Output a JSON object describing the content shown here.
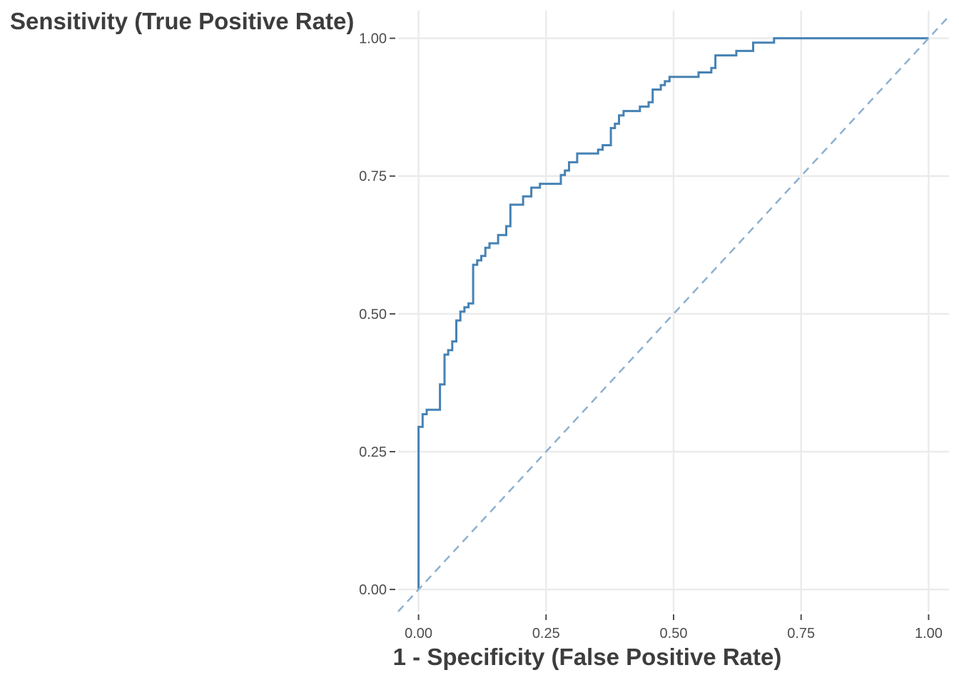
{
  "chart_data": {
    "type": "line",
    "xlabel": "1 - Specificity (False Positive Rate)",
    "ylabel": "Sensitivity (True Positive Rate)",
    "xlim": [
      -0.04,
      1.04
    ],
    "ylim": [
      -0.04,
      1.05
    ],
    "x_ticks": [
      0,
      0.25,
      0.5,
      0.75,
      1
    ],
    "x_tick_labels": [
      "0.00",
      "0.25",
      "0.50",
      "0.75",
      "1.00"
    ],
    "y_ticks": [
      0,
      0.25,
      0.5,
      0.75,
      1
    ],
    "y_tick_labels": [
      "0.00",
      "0.25",
      "0.50",
      "0.75",
      "1.00"
    ],
    "grid": true,
    "colors": {
      "roc": "#4682b4",
      "reference": "#8cb0d0",
      "grid": "#ebebeb"
    },
    "series": [
      {
        "style": "step",
        "points": [
          [
            0,
            0
          ],
          [
            0,
            0.295
          ],
          [
            0.008,
            0.295
          ],
          [
            0.008,
            0.318
          ],
          [
            0.016,
            0.318
          ],
          [
            0.016,
            0.326
          ],
          [
            0.042,
            0.326
          ],
          [
            0.042,
            0.372
          ],
          [
            0.051,
            0.372
          ],
          [
            0.051,
            0.426
          ],
          [
            0.058,
            0.426
          ],
          [
            0.058,
            0.434
          ],
          [
            0.066,
            0.434
          ],
          [
            0.066,
            0.45
          ],
          [
            0.074,
            0.45
          ],
          [
            0.074,
            0.488
          ],
          [
            0.082,
            0.488
          ],
          [
            0.082,
            0.504
          ],
          [
            0.09,
            0.504
          ],
          [
            0.09,
            0.512
          ],
          [
            0.098,
            0.512
          ],
          [
            0.098,
            0.519
          ],
          [
            0.107,
            0.519
          ],
          [
            0.107,
            0.589
          ],
          [
            0.115,
            0.589
          ],
          [
            0.115,
            0.597
          ],
          [
            0.123,
            0.597
          ],
          [
            0.123,
            0.605
          ],
          [
            0.131,
            0.605
          ],
          [
            0.131,
            0.62
          ],
          [
            0.139,
            0.62
          ],
          [
            0.139,
            0.628
          ],
          [
            0.156,
            0.628
          ],
          [
            0.156,
            0.643
          ],
          [
            0.172,
            0.643
          ],
          [
            0.172,
            0.659
          ],
          [
            0.18,
            0.659
          ],
          [
            0.18,
            0.698
          ],
          [
            0.205,
            0.698
          ],
          [
            0.205,
            0.713
          ],
          [
            0.221,
            0.713
          ],
          [
            0.221,
            0.729
          ],
          [
            0.238,
            0.729
          ],
          [
            0.238,
            0.736
          ],
          [
            0.279,
            0.736
          ],
          [
            0.279,
            0.752
          ],
          [
            0.287,
            0.752
          ],
          [
            0.287,
            0.76
          ],
          [
            0.295,
            0.76
          ],
          [
            0.295,
            0.775
          ],
          [
            0.311,
            0.775
          ],
          [
            0.311,
            0.791
          ],
          [
            0.352,
            0.791
          ],
          [
            0.352,
            0.798
          ],
          [
            0.361,
            0.798
          ],
          [
            0.361,
            0.806
          ],
          [
            0.377,
            0.806
          ],
          [
            0.377,
            0.837
          ],
          [
            0.385,
            0.837
          ],
          [
            0.385,
            0.845
          ],
          [
            0.393,
            0.845
          ],
          [
            0.393,
            0.86
          ],
          [
            0.402,
            0.86
          ],
          [
            0.402,
            0.868
          ],
          [
            0.434,
            0.868
          ],
          [
            0.434,
            0.876
          ],
          [
            0.451,
            0.876
          ],
          [
            0.451,
            0.884
          ],
          [
            0.459,
            0.884
          ],
          [
            0.459,
            0.907
          ],
          [
            0.475,
            0.907
          ],
          [
            0.475,
            0.915
          ],
          [
            0.483,
            0.915
          ],
          [
            0.483,
            0.922
          ],
          [
            0.492,
            0.922
          ],
          [
            0.492,
            0.93
          ],
          [
            0.549,
            0.93
          ],
          [
            0.549,
            0.938
          ],
          [
            0.574,
            0.938
          ],
          [
            0.574,
            0.946
          ],
          [
            0.582,
            0.946
          ],
          [
            0.582,
            0.969
          ],
          [
            0.623,
            0.969
          ],
          [
            0.623,
            0.977
          ],
          [
            0.656,
            0.977
          ],
          [
            0.656,
            0.992
          ],
          [
            0.697,
            0.992
          ],
          [
            0.697,
            1.0
          ],
          [
            1.0,
            1.0
          ]
        ]
      },
      {
        "style": "dashed",
        "points": [
          [
            -0.04,
            -0.04
          ],
          [
            1.04,
            1.04
          ]
        ]
      }
    ]
  }
}
